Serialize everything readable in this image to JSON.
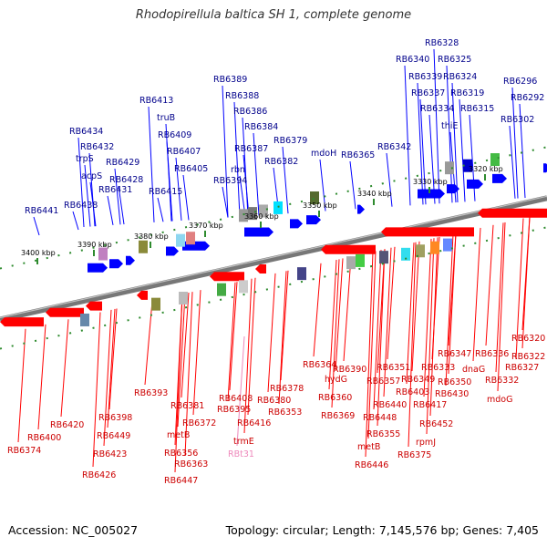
{
  "title": "Rhodopirellula baltica SH 1, complete genome",
  "accession": "Accession: NC_005027",
  "summary": "Topology: circular; Length: 7,145,576 bp; Genes: 7,405",
  "colors": {
    "forward_gene": "#0000ff",
    "forward_label": "#00008b",
    "reverse_gene": "#ff0000",
    "reverse_label": "#cc0000",
    "rna_label": "#ee88bb",
    "backbone": "#777777",
    "tick": "#2e8b2e"
  },
  "scale_labels": [
    "3400 kbp",
    "3390 kbp",
    "3380 kbp",
    "3370 kbp",
    "3360 kbp",
    "3350 kbp",
    "3340 kbp",
    "3330 kbp",
    "3320 kbp"
  ],
  "forward_labels": [
    "RB6328",
    "RB6340",
    "RB6325",
    "RB6339",
    "RB6324",
    "RB6296",
    "RB6337",
    "RB6319",
    "RB6292",
    "RB6334",
    "RB6315",
    "RB6302",
    "RB6389",
    "RB6388",
    "RB6413",
    "RB6386",
    "truB",
    "RB6384",
    "RB6434",
    "RB6409",
    "RB6379",
    "RB6387",
    "RB6432",
    "RB6407",
    "mdoH",
    "RB6342",
    "trpS",
    "RB6382",
    "RB6365",
    "RB6429",
    "rbn",
    "RB6405",
    "thiE",
    "acpS",
    "RB6428",
    "RB6394",
    "RB6431",
    "RB6415",
    "RB6438",
    "RB6441"
  ],
  "reverse_labels": [
    "RB6320",
    "RB6322",
    "RB6347",
    "RB6336",
    "RB6327",
    "dnaG",
    "RB6332",
    "mdoG",
    "RB6364",
    "RB6351",
    "RB6333",
    "RB6390",
    "RB6378",
    "hydG",
    "RB6357",
    "RB6349",
    "RB6350",
    "RB6430",
    "RB6393",
    "RB6380",
    "RB6360",
    "RB6403",
    "RB6408",
    "RB6395",
    "RB6353",
    "RB6417",
    "RB6381",
    "RB6369",
    "RB6440",
    "RB6398",
    "RB6416",
    "RB6372",
    "RB6448",
    "RB6420",
    "metB",
    "RB6449",
    "RB6400",
    "trmE",
    "RB6355",
    "RB6452",
    "RB6374",
    "metB",
    "RB6423",
    "RB6356",
    "rpmJ",
    "RB6363",
    "RB6375",
    "RB6446",
    "RB6426",
    "RB6447"
  ],
  "rna_labels": [
    "RBt31"
  ]
}
